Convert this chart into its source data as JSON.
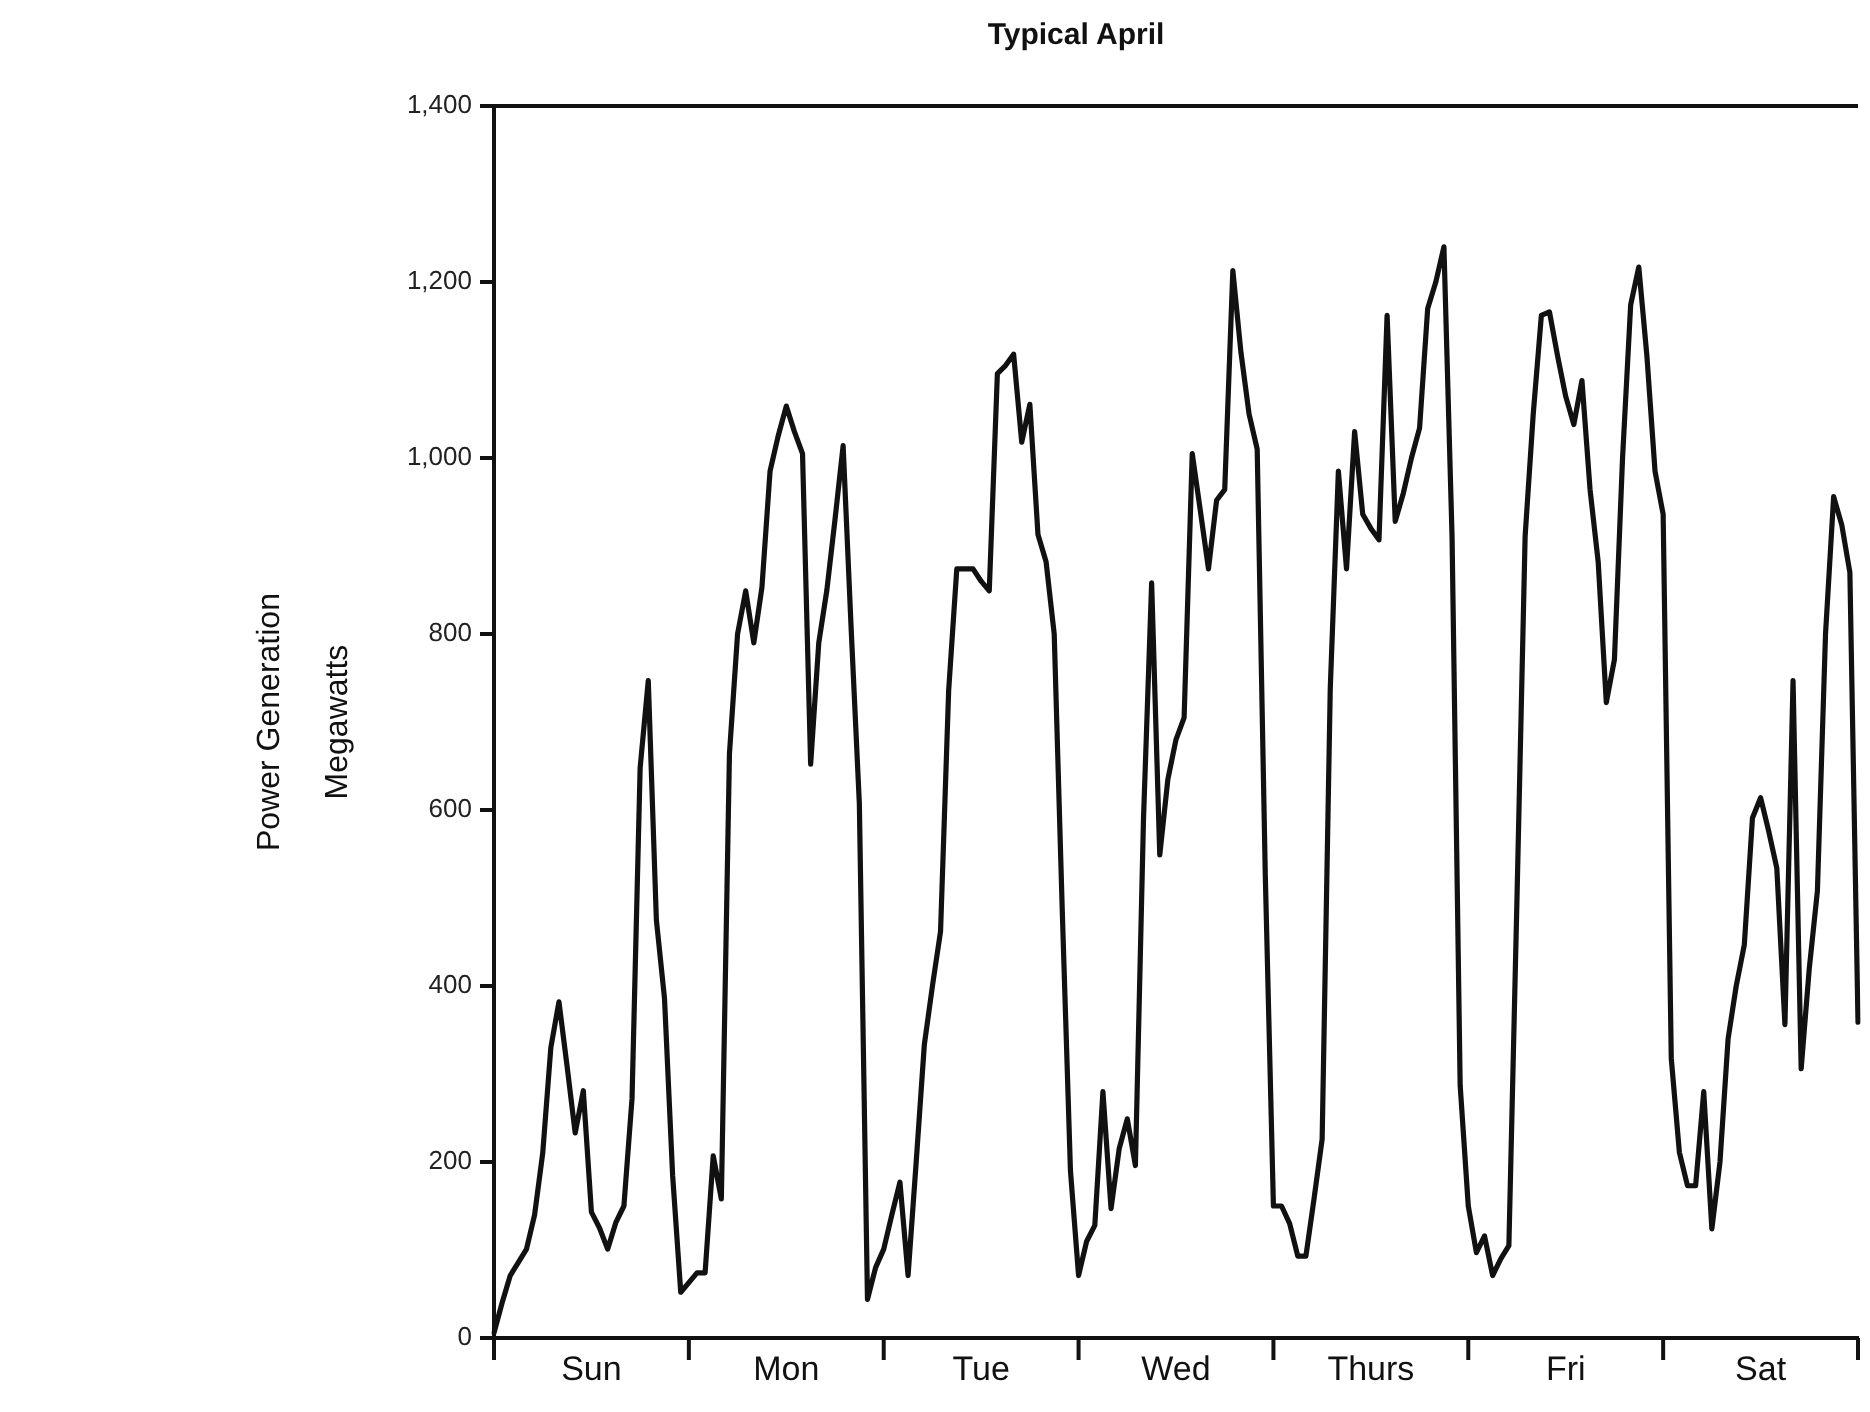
{
  "chart_data": {
    "type": "line",
    "title": "Typical April",
    "ylabel": "Power Generation\nMegawatts",
    "categories": [
      null,
      null,
      null,
      null,
      null,
      null,
      null,
      null,
      null,
      null,
      null,
      null,
      "Sun",
      null,
      null,
      null,
      null,
      null,
      null,
      null,
      null,
      null,
      null,
      null,
      null,
      null,
      null,
      null,
      null,
      null,
      null,
      null,
      null,
      null,
      null,
      null,
      "Mon",
      null,
      null,
      null,
      null,
      null,
      null,
      null,
      null,
      null,
      null,
      null,
      null,
      null,
      null,
      null,
      null,
      null,
      null,
      null,
      null,
      null,
      null,
      null,
      "Tue",
      null,
      null,
      null,
      null,
      null,
      null,
      null,
      null,
      null,
      null,
      null,
      null,
      null,
      null,
      null,
      null,
      null,
      null,
      null,
      null,
      null,
      null,
      null,
      "Wed",
      null,
      null,
      null,
      null,
      null,
      null,
      null,
      null,
      null,
      null,
      null,
      null,
      null,
      null,
      null,
      null,
      null,
      null,
      null,
      null,
      null,
      null,
      null,
      "Thurs",
      null,
      null,
      null,
      null,
      null,
      null,
      null,
      null,
      null,
      null,
      null,
      null,
      null,
      null,
      null,
      null,
      null,
      null,
      null,
      null,
      null,
      null,
      null,
      "Fri",
      null,
      null,
      null,
      null,
      null,
      null,
      null,
      null,
      null,
      null,
      null,
      null,
      null,
      null,
      null,
      null,
      null,
      null,
      null,
      null,
      null,
      null,
      null,
      "Sat",
      null,
      null,
      null,
      null,
      null,
      null,
      null,
      null,
      null,
      null,
      null,
      null
    ],
    "ylim": [
      0,
      1400
    ],
    "yticks": [
      0,
      200,
      400,
      600,
      800,
      {
        "value": 1000,
        "label": "1,000"
      },
      {
        "value": 1200,
        "label": "1,200"
      },
      {
        "value": 1400,
        "label": "1,400"
      }
    ],
    "grid": false,
    "legend": false,
    "marker": "none",
    "line_style": "solid",
    "series": [
      {
        "color": "#111111",
        "values": [
          6,
          40,
          71,
          86,
          101,
          140,
          210,
          330,
          382,
          309,
          233,
          281,
          143,
          125,
          101,
          131,
          150,
          272,
          648,
          747,
          475,
          386,
          185,
          52,
          63,
          74,
          74,
          207,
          158,
          664,
          800,
          849,
          790,
          853,
          985,
          1025,
          1059,
          1030,
          1005,
          652,
          790,
          850,
          930,
          1014,
          804,
          607,
          44,
          80,
          101,
          140,
          177,
          71,
          200,
          333,
          400,
          462,
          736,
          874,
          874,
          874,
          860,
          849,
          1096,
          1105,
          1118,
          1018,
          1061,
          913,
          882,
          800,
          483,
          190,
          71,
          110,
          128,
          280,
          147,
          215,
          249,
          196,
          591,
          858,
          549,
          635,
          680,
          705,
          1005,
          940,
          874,
          952,
          964,
          1213,
          1120,
          1050,
          1010,
          525,
          150,
          150,
          130,
          93,
          93,
          158,
          226,
          738,
          985,
          874,
          1030,
          936,
          920,
          907,
          1162,
          928,
          960,
          1000,
          1034,
          1170,
          1200,
          1240,
          911,
          287,
          150,
          97,
          116,
          71,
          90,
          105,
          500,
          911,
          1050,
          1162,
          1166,
          1116,
          1070,
          1038,
          1088,
          964,
          882,
          722,
          771,
          1000,
          1174,
          1217,
          1116,
          985,
          936,
          318,
          211,
          173,
          173,
          280,
          124,
          200,
          340,
          400,
          447,
          591,
          614,
          576,
          534,
          356,
          747,
          306,
          420,
          508,
          800,
          956,
          924,
          870,
          359
        ]
      }
    ]
  }
}
